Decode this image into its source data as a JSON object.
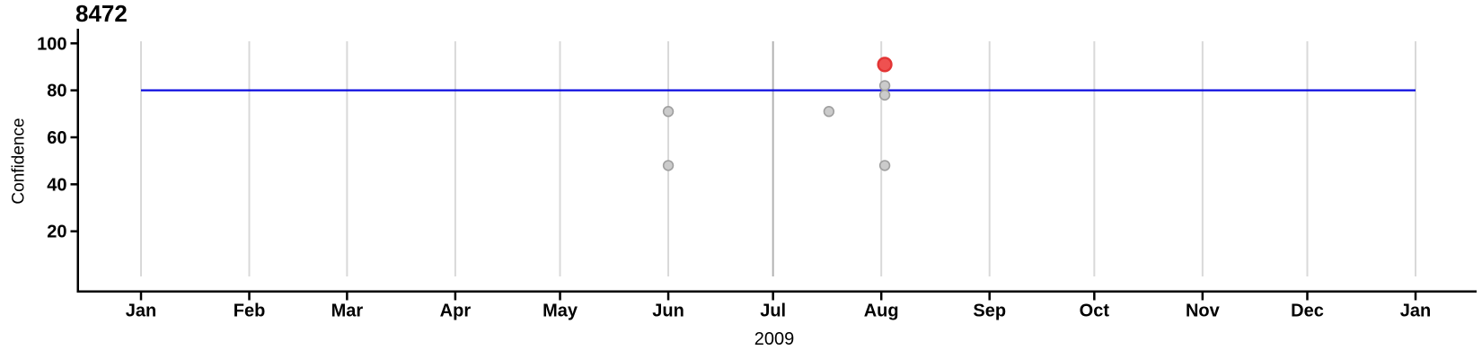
{
  "chart_data": {
    "type": "scatter",
    "title": "8472",
    "ylabel": "Confidence",
    "xlabel": "2009",
    "x_axis": {
      "year": "2009",
      "tick_labels": [
        "Jan",
        "Feb",
        "Mar",
        "Apr",
        "May",
        "Jun",
        "Jul",
        "Aug",
        "Sep",
        "Oct",
        "Nov",
        "Dec",
        "Jan"
      ],
      "tick_day_offsets": [
        0,
        31,
        59,
        90,
        120,
        151,
        181,
        212,
        243,
        273,
        304,
        334,
        365
      ],
      "grid": true,
      "grid_emphasis_index": 6
    },
    "y_axis": {
      "label": "Confidence",
      "ticks": [
        20,
        40,
        60,
        80,
        100
      ],
      "range": [
        0,
        106
      ]
    },
    "threshold": {
      "value": 80
    },
    "points": [
      {
        "date": "Jun 1",
        "day_of_year": 151,
        "confidence": 71,
        "type": "normal"
      },
      {
        "date": "Jun 1",
        "day_of_year": 151,
        "confidence": 48,
        "type": "normal"
      },
      {
        "date": "Jul 17",
        "day_of_year": 197,
        "confidence": 71,
        "type": "normal"
      },
      {
        "date": "Aug 2",
        "day_of_year": 213,
        "confidence": 82,
        "type": "normal"
      },
      {
        "date": "Aug 2",
        "day_of_year": 213,
        "confidence": 78,
        "type": "normal"
      },
      {
        "date": "Aug 2",
        "day_of_year": 213,
        "confidence": 48,
        "type": "normal"
      },
      {
        "date": "Aug 2",
        "day_of_year": 213,
        "confidence": 91,
        "type": "alert"
      }
    ],
    "colors": {
      "axis": "#000000",
      "grid": "#d9d9d9",
      "grid_emphasis": "#b3b3b3",
      "threshold": "#0b0be0",
      "point_fill": "#cbcbcb",
      "point_stroke": "#9f9f9f",
      "alert_fill": "#ef5150",
      "alert_stroke": "#e23434",
      "text": "#000000"
    }
  }
}
